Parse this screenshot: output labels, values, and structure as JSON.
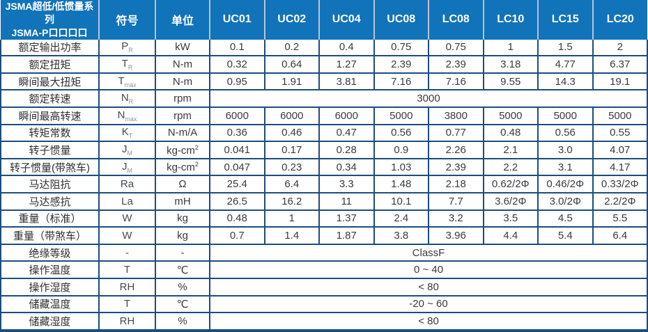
{
  "colors": {
    "header_bg": "#1173b9",
    "header_divider": "#b9c3d9",
    "grid": "#1b4c80",
    "body_text": "#3a3a3a",
    "label_text": "#2f2f2f",
    "header_text": "#ffffff"
  },
  "header": {
    "title_line1": "JSMA超低/低惯量系列",
    "title_line2": "JSMA-P口口口口",
    "symbol_col": "符号",
    "unit_col": "单位",
    "models": [
      "UC01",
      "UC02",
      "UC04",
      "UC08",
      "LC08",
      "LC10",
      "LC15",
      "LC20"
    ]
  },
  "rows": [
    {
      "label": "额定输出功率",
      "symbol": "P",
      "symbol_sub": "R",
      "unit": "kW",
      "values": [
        "0.1",
        "0.2",
        "0.4",
        "0.75",
        "0.75",
        "1",
        "1.5",
        "2"
      ]
    },
    {
      "label": "额定扭矩",
      "symbol": "T",
      "symbol_sub": "R",
      "unit": "N-m",
      "values": [
        "0.32",
        "0.64",
        "1.27",
        "2.39",
        "2.39",
        "3.18",
        "4.77",
        "6.37"
      ]
    },
    {
      "label": "瞬间最大扭矩",
      "symbol": "T",
      "symbol_sub": "max",
      "unit": "N-m",
      "values": [
        "0.95",
        "1.91",
        "3.81",
        "7.16",
        "7.16",
        "9.55",
        "14.3",
        "19.1"
      ]
    },
    {
      "label": "额定转速",
      "symbol": "N",
      "symbol_sub": "R",
      "unit": "rpm",
      "merged": "3000"
    },
    {
      "label": "瞬间最高转速",
      "symbol": "N",
      "symbol_sub": "max",
      "unit": "rpm",
      "values": [
        "6000",
        "6000",
        "6000",
        "5000",
        "3800",
        "5000",
        "5000",
        "5000"
      ]
    },
    {
      "label": "转矩常数",
      "symbol": "K",
      "symbol_sub": "T",
      "unit": "N-m/A",
      "values": [
        "0.36",
        "0.46",
        "0.47",
        "0.56",
        "0.77",
        "0.48",
        "0.56",
        "0.55"
      ]
    },
    {
      "label": "转子惯量",
      "symbol": "J",
      "symbol_sub": "M",
      "unit": "kg-cm",
      "unit_sup": "2",
      "values": [
        "0.041",
        "0.17",
        "0.28",
        "0.9",
        "2.26",
        "2.1",
        "3.0",
        "4.07"
      ]
    },
    {
      "label": "转子惯量(带煞车)",
      "symbol": "J",
      "symbol_sub": "M",
      "unit": "kg-cm",
      "unit_sup": "2",
      "values": [
        "0.047",
        "0.23",
        "0.34",
        "1.03",
        "2.39",
        "2.2",
        "3.1",
        "4.17"
      ]
    },
    {
      "label": "马达阻抗",
      "symbol": "Ra",
      "unit": "Ω",
      "values": [
        "25.4",
        "6.4",
        "3.3",
        "1.48",
        "2.18",
        "0.62/2Φ",
        "0.46/2Φ",
        "0.33/2Φ"
      ]
    },
    {
      "label": "马达感抗",
      "symbol": "La",
      "unit": "mH",
      "values": [
        "26.5",
        "16.2",
        "11",
        "10.1",
        "7.7",
        "3.6/2Φ",
        "3.0/2Φ",
        "2.2/2Φ"
      ]
    },
    {
      "label": "重量（标准）",
      "symbol": "W",
      "unit": "kg",
      "values": [
        "0.48",
        "1",
        "1.37",
        "2.4",
        "3.2",
        "3.5",
        "4.5",
        "5.5"
      ]
    },
    {
      "label": "重量（带煞车）",
      "symbol": "W",
      "unit": "kg",
      "values": [
        "0.7",
        "1.4",
        "1.87",
        "3.8",
        "3.96",
        "4.4",
        "5.4",
        "6.4"
      ]
    },
    {
      "label": "绝缘等级",
      "symbol": "-",
      "unit": "-",
      "merged": "ClassF"
    },
    {
      "label": "操作温度",
      "symbol": "T",
      "unit": "℃",
      "merged": "0 ~ 40"
    },
    {
      "label": "操作湿度",
      "symbol": "RH",
      "unit": "%",
      "merged": "< 80"
    },
    {
      "label": "储藏温度",
      "symbol": "T",
      "unit": "℃",
      "merged": "-20 ~ 60"
    },
    {
      "label": "储藏湿度",
      "symbol": "RH",
      "unit": "%",
      "merged": "< 80"
    }
  ]
}
